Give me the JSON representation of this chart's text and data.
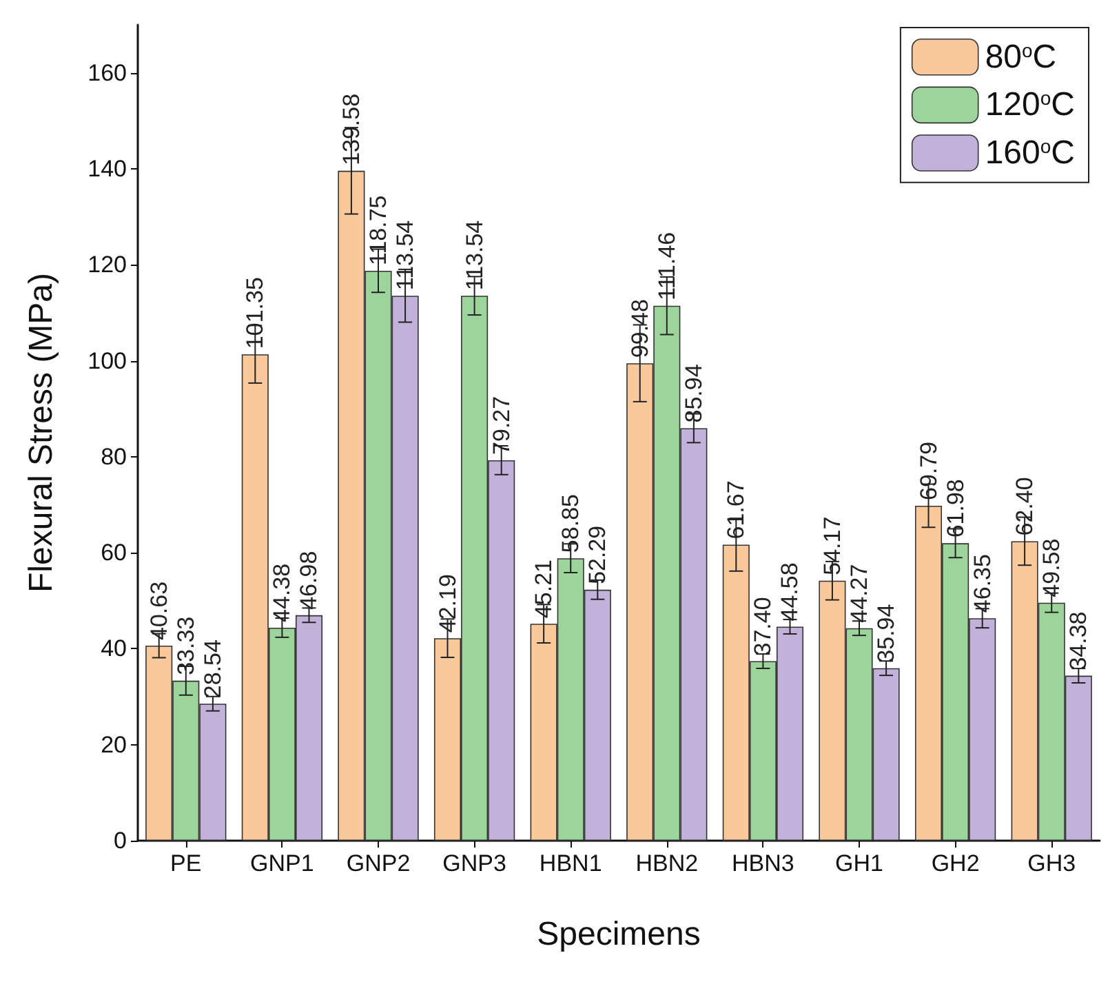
{
  "chart_data": {
    "type": "bar",
    "xlabel": "Specimens",
    "ylabel": "Flexural Stress (MPa)",
    "categories": [
      "PE",
      "GNP1",
      "GNP2",
      "GNP3",
      "HBN1",
      "HBN2",
      "HBN3",
      "GH1",
      "GH2",
      "GH3"
    ],
    "ylim": [
      0,
      170
    ],
    "yticks": [
      0,
      20,
      40,
      60,
      80,
      100,
      120,
      140,
      160
    ],
    "grid": false,
    "legend": "top right",
    "series": [
      {
        "name": "80$^{o}$C",
        "color": "#f9c99c",
        "values": [
          40.63,
          101.35,
          139.58,
          42.19,
          45.21,
          99.48,
          61.67,
          54.17,
          69.79,
          62.4
        ],
        "errors": [
          2.5,
          6,
          9,
          4,
          4,
          8,
          5.5,
          4,
          4.5,
          5
        ],
        "value_labels": [
          "40.63",
          "101.35",
          "139.58",
          "42.19",
          "45.21",
          "99.48",
          "61.67",
          "54.17",
          "69.79",
          "62.40"
        ]
      },
      {
        "name": "120$^{o}$C",
        "color": "#9dd49b",
        "values": [
          33.33,
          44.38,
          118.75,
          113.54,
          58.85,
          111.46,
          37.4,
          44.27,
          61.98,
          49.58
        ],
        "errors": [
          3,
          2,
          4.5,
          4,
          3,
          6,
          1.5,
          1.5,
          3,
          2
        ],
        "value_labels": [
          "33.33",
          "44.38",
          "118.75",
          "113.54",
          "58.85",
          "111.46",
          "37.40",
          "44.27",
          "61.98",
          "49.58"
        ]
      },
      {
        "name": "160$^{o}$C",
        "color": "#c2b2da",
        "values": [
          28.54,
          46.98,
          113.54,
          79.27,
          52.29,
          85.94,
          44.58,
          35.94,
          46.35,
          34.38
        ],
        "errors": [
          1.5,
          1.5,
          5.5,
          3,
          2,
          3,
          1.5,
          1.5,
          2,
          1.5
        ],
        "value_labels": [
          "28.54",
          "46.98",
          "113.54",
          "79.27",
          "52.29",
          "85.94",
          "44.58",
          "35.94",
          "46.35",
          "34.38"
        ]
      }
    ]
  }
}
